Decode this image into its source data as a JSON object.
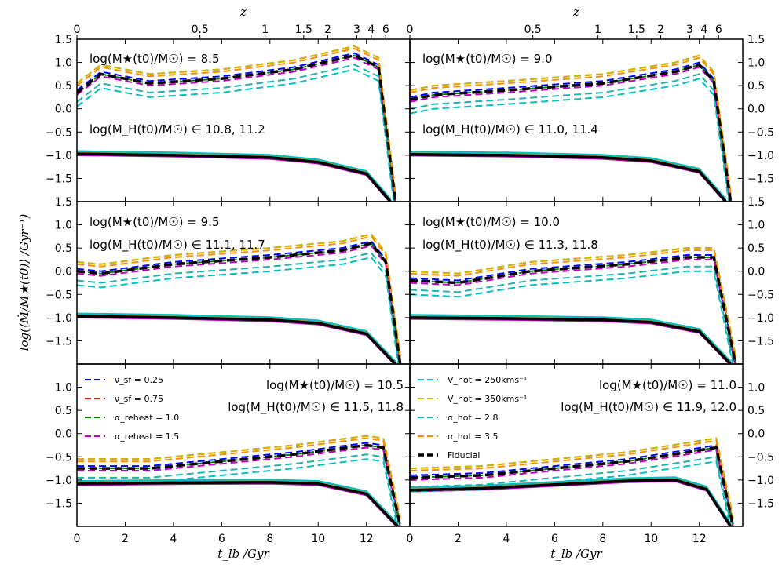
{
  "chart_data": {
    "type": "line",
    "layout": "3x2 panel grid",
    "xlabel": "t_lb /Gyr",
    "ylabel": "log(⟨Ṁ/M★(t0)⟩ /Gyr⁻¹)",
    "top_axis_label": "z",
    "xlim": [
      0,
      13.8
    ],
    "ylim": [
      -2.0,
      1.5
    ],
    "x_ticks": [
      "0",
      "2",
      "4",
      "6",
      "8",
      "10",
      "12"
    ],
    "y_ticks": [
      "1.5",
      "1.0",
      "0.5",
      "0.0",
      "−0.5",
      "−1.0",
      "−1.5"
    ],
    "z_ticks": [
      {
        "label": "0",
        "t": 0
      },
      {
        "label": "0.5",
        "t": 5.1
      },
      {
        "label": "1",
        "t": 7.8
      },
      {
        "label": "1.5",
        "t": 9.4
      },
      {
        "label": "2",
        "t": 10.4
      },
      {
        "label": "3",
        "t": 11.6
      },
      {
        "label": "4",
        "t": 12.2
      },
      {
        "label": "6",
        "t": 12.8
      }
    ],
    "legend": {
      "left": [
        {
          "label": "ν_sf = 0.25",
          "color": "#0000ff"
        },
        {
          "label": "ν_sf = 0.75",
          "color": "#ff0000"
        },
        {
          "label": "α_reheat = 1.0",
          "color": "#008000"
        },
        {
          "label": "α_reheat = 1.5",
          "color": "#bf00bf"
        }
      ],
      "right": [
        {
          "label": "V_hot = 250kms⁻¹",
          "color": "#00bfbf"
        },
        {
          "label": "V_hot = 350kms⁻¹",
          "color": "#bfbf00"
        },
        {
          "label": "α_hot = 2.8",
          "color": "#20b2aa"
        },
        {
          "label": "α_hot = 3.5",
          "color": "#ff8c00"
        },
        {
          "label": "Fiducial",
          "color": "#000000"
        }
      ]
    },
    "line_styles": {
      "solid": "stellar mass growth",
      "dashed": "halo/accretion"
    },
    "panels": [
      {
        "mstar": "log(M★(t0)/M☉) = 8.5",
        "mhalo": "log(M_H(t0)/M☉) ∈ 10.8, 11.2",
        "fiducial_dashed": [
          [
            0,
            0.35
          ],
          [
            1,
            0.75
          ],
          [
            3,
            0.55
          ],
          [
            6,
            0.65
          ],
          [
            9,
            0.85
          ],
          [
            11.5,
            1.15
          ],
          [
            12.5,
            0.9
          ],
          [
            13.2,
            -2.0
          ]
        ],
        "fiducial_solid": [
          [
            0,
            -0.97
          ],
          [
            4,
            -1.0
          ],
          [
            8,
            -1.05
          ],
          [
            10,
            -1.15
          ],
          [
            12,
            -1.4
          ],
          [
            13,
            -2.0
          ]
        ]
      },
      {
        "mstar": "log(M★(t0)/M☉) = 9.0",
        "mhalo": "log(M_H(t0)/M☉) ∈ 11.0, 11.4",
        "fiducial_dashed": [
          [
            0,
            0.2
          ],
          [
            1,
            0.3
          ],
          [
            4,
            0.4
          ],
          [
            8,
            0.55
          ],
          [
            11,
            0.8
          ],
          [
            12,
            0.95
          ],
          [
            12.6,
            0.6
          ],
          [
            13.3,
            -2.0
          ]
        ],
        "fiducial_solid": [
          [
            0,
            -0.98
          ],
          [
            4,
            -1.0
          ],
          [
            8,
            -1.05
          ],
          [
            10,
            -1.12
          ],
          [
            12,
            -1.35
          ],
          [
            13.1,
            -2.0
          ]
        ]
      },
      {
        "mstar": "log(M★(t0)/M☉) = 9.5",
        "mhalo": "log(M_H(t0)/M☉) ∈ 11.1, 11.7",
        "fiducial_dashed": [
          [
            0,
            0.0
          ],
          [
            1,
            -0.05
          ],
          [
            4,
            0.15
          ],
          [
            8,
            0.3
          ],
          [
            11,
            0.45
          ],
          [
            12.2,
            0.6
          ],
          [
            12.8,
            0.2
          ],
          [
            13.4,
            -2.0
          ]
        ],
        "fiducial_solid": [
          [
            0,
            -0.97
          ],
          [
            4,
            -1.0
          ],
          [
            8,
            -1.05
          ],
          [
            10,
            -1.12
          ],
          [
            12,
            -1.35
          ],
          [
            13.2,
            -2.0
          ]
        ]
      },
      {
        "mstar": "log(M★(t0)/M☉) = 10.0",
        "mhalo": "log(M_H(t0)/M☉) ∈ 11.3, 11.8",
        "fiducial_dashed": [
          [
            0,
            -0.2
          ],
          [
            2,
            -0.25
          ],
          [
            5,
            0.0
          ],
          [
            9,
            0.15
          ],
          [
            11.5,
            0.3
          ],
          [
            12.6,
            0.3
          ],
          [
            13.5,
            -2.0
          ]
        ],
        "fiducial_solid": [
          [
            0,
            -1.0
          ],
          [
            4,
            -1.02
          ],
          [
            8,
            -1.05
          ],
          [
            10,
            -1.1
          ],
          [
            12,
            -1.3
          ],
          [
            13.3,
            -2.0
          ]
        ]
      },
      {
        "mstar": "log(M★(t0)/M☉) = 10.5",
        "mhalo": "log(M_H(t0)/M☉) ∈ 11.5, 11.8",
        "fiducial_dashed": [
          [
            0,
            -0.75
          ],
          [
            3,
            -0.75
          ],
          [
            6,
            -0.6
          ],
          [
            9,
            -0.45
          ],
          [
            12,
            -0.25
          ],
          [
            12.7,
            -0.3
          ],
          [
            13.4,
            -2.0
          ]
        ],
        "fiducial_solid": [
          [
            0,
            -1.08
          ],
          [
            4,
            -1.06
          ],
          [
            8,
            -1.05
          ],
          [
            10,
            -1.08
          ],
          [
            12,
            -1.3
          ],
          [
            13.3,
            -2.0
          ]
        ]
      },
      {
        "mstar": "log(M★(t0)/M☉) = 11.0",
        "mhalo": "log(M_H(t0)/M☉) ∈ 11.9, 12.0",
        "fiducial_dashed": [
          [
            0,
            -0.95
          ],
          [
            3,
            -0.9
          ],
          [
            6,
            -0.75
          ],
          [
            9,
            -0.6
          ],
          [
            11.5,
            -0.4
          ],
          [
            12.7,
            -0.3
          ],
          [
            13.4,
            -2.0
          ]
        ],
        "fiducial_solid": [
          [
            0,
            -1.22
          ],
          [
            3,
            -1.18
          ],
          [
            6,
            -1.1
          ],
          [
            9,
            -1.02
          ],
          [
            11,
            -1.0
          ],
          [
            12.3,
            -1.2
          ],
          [
            13.3,
            -2.0
          ]
        ]
      }
    ],
    "variant_offsets": {
      "dashed": [
        0.05,
        0.2,
        0.0,
        -0.05,
        -0.3,
        0.2,
        -0.2,
        0.15
      ],
      "solid": [
        -0.02,
        -0.02,
        0.0,
        -0.03,
        0.06,
        0.0,
        0.03,
        0.02
      ]
    }
  }
}
